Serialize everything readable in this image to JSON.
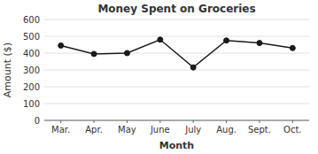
{
  "chart_data": {
    "type": "line",
    "title": "Money Spent on Groceries",
    "xlabel": "Month",
    "ylabel": "Amount ($)",
    "categories": [
      "Mar.",
      "Apr.",
      "May",
      "June",
      "July",
      "Aug.",
      "Sept.",
      "Oct."
    ],
    "values": [
      445,
      395,
      400,
      480,
      315,
      475,
      460,
      430
    ],
    "color": "#1a1a1a",
    "marker": "circle",
    "ylim": [
      0,
      600
    ],
    "yticks": [
      0,
      100,
      200,
      300,
      400,
      500,
      600
    ],
    "grid": true
  }
}
